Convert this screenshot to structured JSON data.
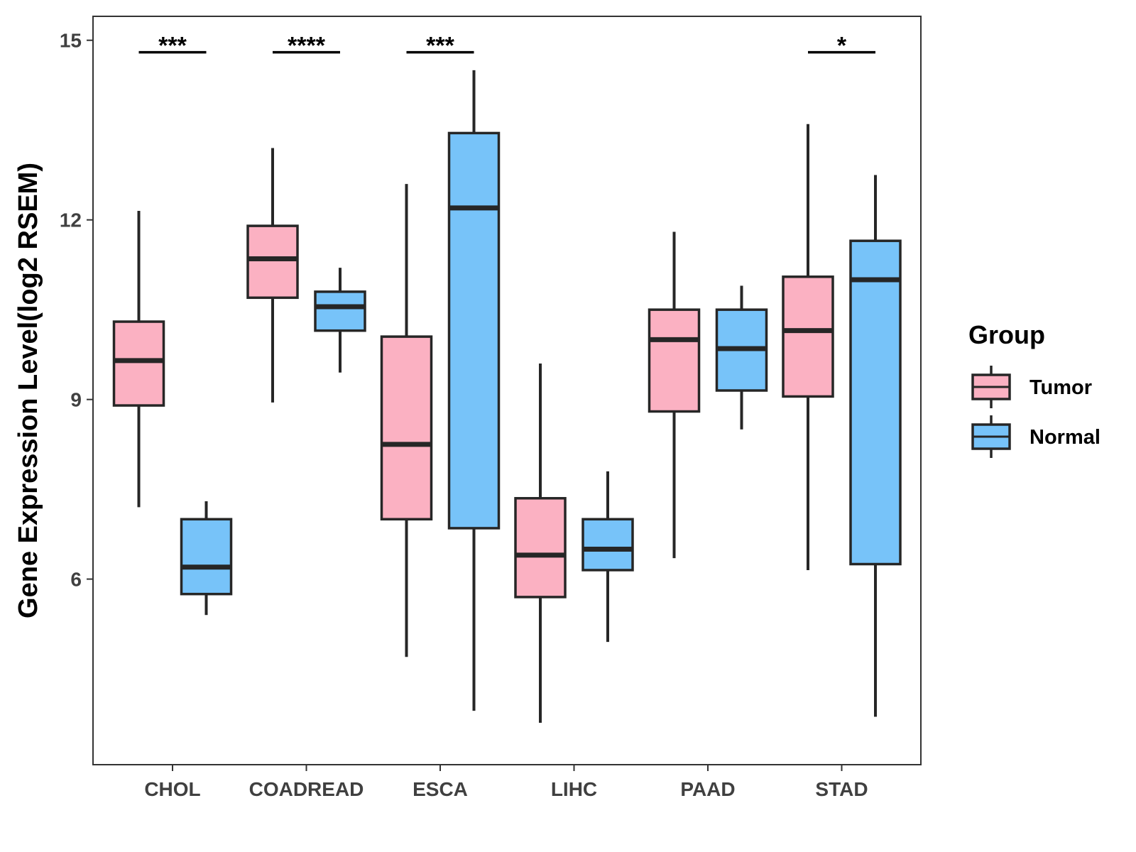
{
  "chart_data": {
    "type": "boxplot",
    "title": "",
    "xlabel": "",
    "ylabel": "Gene Expression Level(log2 RSEM)",
    "ylim": [
      2.9,
      15.4
    ],
    "yticks": [
      6,
      9,
      12,
      15
    ],
    "categories": [
      "CHOL",
      "COADREAD",
      "ESCA",
      "LIHC",
      "PAAD",
      "STAD"
    ],
    "legend": {
      "title": "Group",
      "placement": "right",
      "entries": [
        "Tumor",
        "Normal"
      ]
    },
    "colors": {
      "Tumor": "#fbb1c2",
      "Normal": "#77c3f9",
      "outline": "#262626",
      "panel_border": "#333333"
    },
    "series": [
      {
        "name": "Tumor",
        "boxes": [
          {
            "category": "CHOL",
            "whisker_low": 7.2,
            "q1": 8.9,
            "median": 9.65,
            "q3": 10.3,
            "whisker_high": 12.15
          },
          {
            "category": "COADREAD",
            "whisker_low": 8.95,
            "q1": 10.7,
            "median": 11.35,
            "q3": 11.9,
            "whisker_high": 13.2
          },
          {
            "category": "ESCA",
            "whisker_low": 4.7,
            "q1": 7.0,
            "median": 8.25,
            "q3": 10.05,
            "whisker_high": 12.6
          },
          {
            "category": "LIHC",
            "whisker_low": 3.6,
            "q1": 5.7,
            "median": 6.4,
            "q3": 7.35,
            "whisker_high": 9.6
          },
          {
            "category": "PAAD",
            "whisker_low": 6.35,
            "q1": 8.8,
            "median": 10.0,
            "q3": 10.5,
            "whisker_high": 11.8
          },
          {
            "category": "STAD",
            "whisker_low": 6.15,
            "q1": 9.05,
            "median": 10.15,
            "q3": 11.05,
            "whisker_high": 13.6
          }
        ]
      },
      {
        "name": "Normal",
        "boxes": [
          {
            "category": "CHOL",
            "whisker_low": 5.4,
            "q1": 5.75,
            "median": 6.2,
            "q3": 7.0,
            "whisker_high": 7.3
          },
          {
            "category": "COADREAD",
            "whisker_low": 9.45,
            "q1": 10.15,
            "median": 10.55,
            "q3": 10.8,
            "whisker_high": 11.2
          },
          {
            "category": "ESCA",
            "whisker_low": 3.8,
            "q1": 6.85,
            "median": 12.2,
            "q3": 13.45,
            "whisker_high": 14.5
          },
          {
            "category": "LIHC",
            "whisker_low": 4.95,
            "q1": 6.15,
            "median": 6.5,
            "q3": 7.0,
            "whisker_high": 7.8
          },
          {
            "category": "PAAD",
            "whisker_low": 8.5,
            "q1": 9.15,
            "median": 9.85,
            "q3": 10.5,
            "whisker_high": 10.9
          },
          {
            "category": "STAD",
            "whisker_low": 3.7,
            "q1": 6.25,
            "median": 11.0,
            "q3": 11.65,
            "whisker_high": 12.75
          }
        ]
      }
    ],
    "significance": [
      {
        "category": "CHOL",
        "label": "***"
      },
      {
        "category": "COADREAD",
        "label": "****"
      },
      {
        "category": "ESCA",
        "label": "***"
      },
      {
        "category": "LIHC",
        "label": ""
      },
      {
        "category": "PAAD",
        "label": ""
      },
      {
        "category": "STAD",
        "label": "*"
      }
    ],
    "significance_bar_level": 14.8,
    "grid": false
  }
}
